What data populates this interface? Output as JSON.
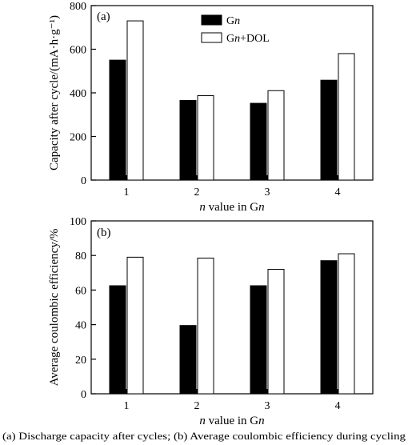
{
  "chart_data": [
    {
      "type": "bar",
      "panel_label": "(a)",
      "categories": [
        "1",
        "2",
        "3",
        "4"
      ],
      "series": [
        {
          "name": "Gn",
          "color": "#000000",
          "values": [
            550,
            365,
            352,
            458
          ]
        },
        {
          "name": "Gn+DOL",
          "color": "#ffffff",
          "values": [
            730,
            387,
            410,
            580
          ]
        }
      ],
      "xlabel": {
        "prefix": "n",
        "rest": " value in G",
        "suffix": "n"
      },
      "ylabel": "Capacity after cycle/(mA·h·g⁻¹)",
      "ylim": [
        0,
        800
      ],
      "yticks": [
        "0",
        "200",
        "400",
        "600",
        "800"
      ],
      "legend": "top-center",
      "legend_items": [
        {
          "base": "G",
          "italic": "n",
          "rest": ""
        },
        {
          "base": "G",
          "italic": "n",
          "rest": "+DOL"
        }
      ]
    },
    {
      "type": "bar",
      "panel_label": "(b)",
      "categories": [
        "1",
        "2",
        "3",
        "4"
      ],
      "series": [
        {
          "name": "Gn",
          "color": "#000000",
          "values": [
            62.5,
            39.5,
            62.5,
            77
          ]
        },
        {
          "name": "Gn+DOL",
          "color": "#ffffff",
          "values": [
            79,
            78.5,
            72,
            81
          ]
        }
      ],
      "xlabel": {
        "prefix": "n",
        "rest": " value in G",
        "suffix": "n"
      },
      "ylabel": "Average coulombic efficiency/%",
      "ylim": [
        0,
        100
      ],
      "yticks": [
        "0",
        "20",
        "40",
        "60",
        "80",
        "100"
      ]
    }
  ],
  "caption": "(a) Discharge capacity after cycles; (b) Average coulombic efficiency during cycling"
}
